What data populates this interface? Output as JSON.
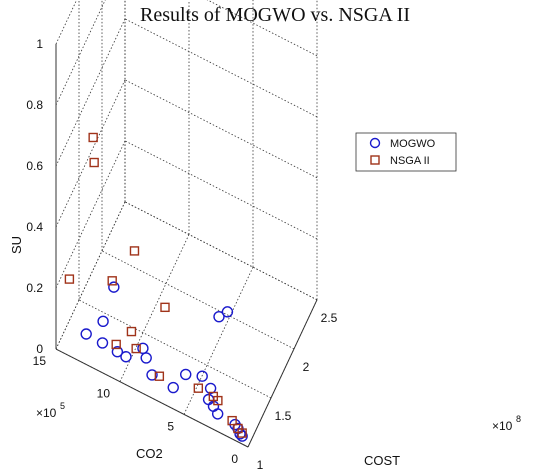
{
  "chart_data": {
    "type": "scatter",
    "title": "Results of MOGWO vs. NSGA II",
    "xlabel": "COST",
    "ylabel": "CO2",
    "zlabel": "SU",
    "x_multiplier": "×10^8",
    "y_multiplier": "×10^5",
    "xlim": [
      1,
      2.5
    ],
    "ylim": [
      0,
      15
    ],
    "zlim": [
      0,
      1
    ],
    "x_ticks": [
      "1",
      "1.5",
      "2",
      "2.5"
    ],
    "y_ticks": [
      "0",
      "5",
      "10",
      "15"
    ],
    "z_ticks": [
      "0",
      "0.2",
      "0.4",
      "0.6",
      "0.8",
      "1"
    ],
    "grid": true,
    "legend_position": "top-right",
    "series": [
      {
        "name": "MOGWO",
        "marker": "circle",
        "color": "#1a1acc",
        "points": [
          {
            "x": 1.04,
            "y": 0.6,
            "z": 0.01
          },
          {
            "x": 1.05,
            "y": 0.8,
            "z": 0.01
          },
          {
            "x": 1.06,
            "y": 1.0,
            "z": 0.02
          },
          {
            "x": 1.08,
            "y": 1.3,
            "z": 0.02
          },
          {
            "x": 1.12,
            "y": 2.8,
            "z": 0.01
          },
          {
            "x": 1.14,
            "y": 3.2,
            "z": 0.02
          },
          {
            "x": 1.2,
            "y": 3.8,
            "z": 0.01
          },
          {
            "x": 1.3,
            "y": 4.0,
            "z": 0.01
          },
          {
            "x": 1.34,
            "y": 4.8,
            "z": 0.02
          },
          {
            "x": 1.26,
            "y": 5.8,
            "z": 0.03
          },
          {
            "x": 1.1,
            "y": 6.2,
            "z": 0.03
          },
          {
            "x": 1.14,
            "y": 8.0,
            "z": 0.02
          },
          {
            "x": 1.18,
            "y": 8.6,
            "z": 0.05
          },
          {
            "x": 1.22,
            "y": 9.0,
            "z": 0.06
          },
          {
            "x": 1.13,
            "y": 10.0,
            "z": 0.04
          },
          {
            "x": 1.11,
            "y": 10.6,
            "z": 0.05
          },
          {
            "x": 1.12,
            "y": 11.8,
            "z": 0.05
          },
          {
            "x": 1.1,
            "y": 13.0,
            "z": 0.06
          },
          {
            "x": 1.3,
            "y": 12.4,
            "z": 0.05
          },
          {
            "x": 1.2,
            "y": 11.2,
            "z": 0.22
          },
          {
            "x": 1.9,
            "y": 5.5,
            "z": 0.02
          },
          {
            "x": 2.0,
            "y": 5.2,
            "z": 0.01
          }
        ]
      },
      {
        "name": "NSGA II",
        "marker": "square",
        "color": "#a0331a",
        "points": [
          {
            "x": 1.04,
            "y": 0.6,
            "z": 0.02
          },
          {
            "x": 1.06,
            "y": 1.0,
            "z": 0.02
          },
          {
            "x": 1.1,
            "y": 1.6,
            "z": 0.02
          },
          {
            "x": 1.18,
            "y": 3.0,
            "z": 0.03
          },
          {
            "x": 1.22,
            "y": 3.5,
            "z": 0.02
          },
          {
            "x": 1.2,
            "y": 4.6,
            "z": 0.03
          },
          {
            "x": 1.16,
            "y": 7.5,
            "z": 0.02
          },
          {
            "x": 1.24,
            "y": 9.6,
            "z": 0.04
          },
          {
            "x": 1.36,
            "y": 10.4,
            "z": 0.04
          },
          {
            "x": 1.14,
            "y": 10.8,
            "z": 0.06
          },
          {
            "x": 1.7,
            "y": 9.0,
            "z": 0.04
          },
          {
            "x": 1.18,
            "y": 14.6,
            "z": 0.18
          },
          {
            "x": 1.22,
            "y": 11.4,
            "z": 0.23
          },
          {
            "x": 1.76,
            "y": 11.6,
            "z": 0.15
          },
          {
            "x": 1.44,
            "y": 13.6,
            "z": 0.5
          },
          {
            "x": 1.14,
            "y": 12.6,
            "z": 0.7
          }
        ]
      }
    ]
  }
}
